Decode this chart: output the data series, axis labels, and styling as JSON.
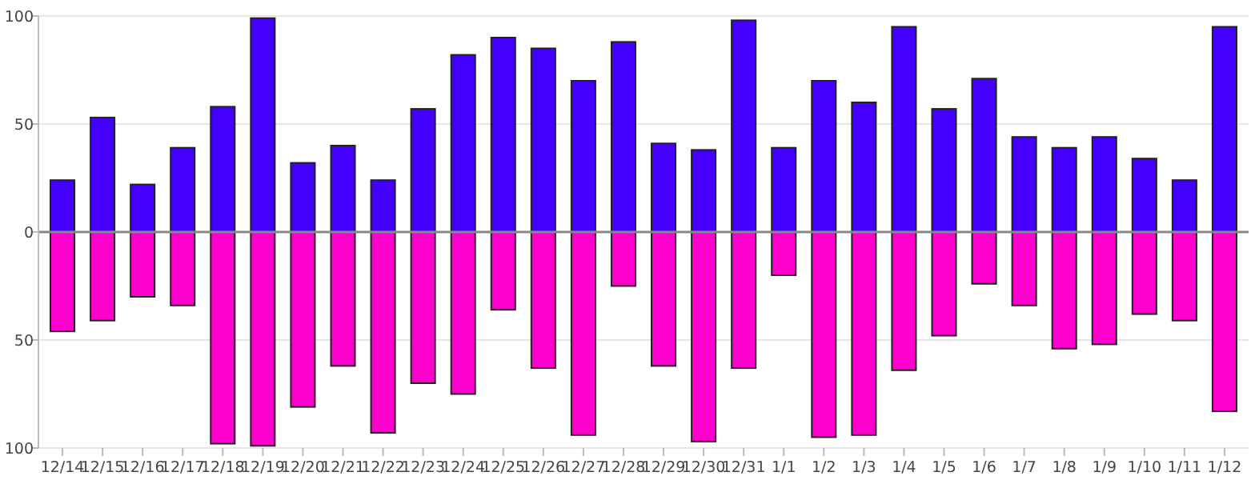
{
  "chart_data": {
    "type": "bar",
    "stacked": true,
    "grid": "y",
    "categories": [
      "12/14",
      "12/15",
      "12/16",
      "12/17",
      "12/18",
      "12/19",
      "12/20",
      "12/21",
      "12/22",
      "12/23",
      "12/24",
      "12/25",
      "12/26",
      "12/27",
      "12/28",
      "12/29",
      "12/30",
      "12/31",
      "1/1",
      "1/2",
      "1/3",
      "1/4",
      "1/5",
      "1/6",
      "1/7",
      "1/8",
      "1/9",
      "1/10",
      "1/11",
      "1/12"
    ],
    "series": [
      {
        "color": "#4400ff",
        "values": [
          24,
          53,
          22,
          39,
          58,
          99,
          32,
          40,
          24,
          57,
          82,
          90,
          85,
          70,
          88,
          41,
          38,
          98,
          39,
          70,
          60,
          95,
          57,
          71,
          44,
          39,
          44,
          34,
          24,
          95
        ]
      },
      {
        "color": "#ff00cc",
        "values": [
          -46,
          -41,
          -30,
          -34,
          -98,
          -99,
          -81,
          -62,
          -93,
          -70,
          -75,
          -36,
          -63,
          -94,
          -25,
          -62,
          -97,
          -63,
          -20,
          -95,
          -94,
          -64,
          -48,
          -24,
          -34,
          -54,
          -52,
          -38,
          -41,
          -83
        ]
      }
    ],
    "ylim": [
      -100,
      100
    ],
    "yticks": [
      {
        "value": -100,
        "label": "100"
      },
      {
        "value": -50,
        "label": "50"
      },
      0,
      50,
      100
    ]
  }
}
